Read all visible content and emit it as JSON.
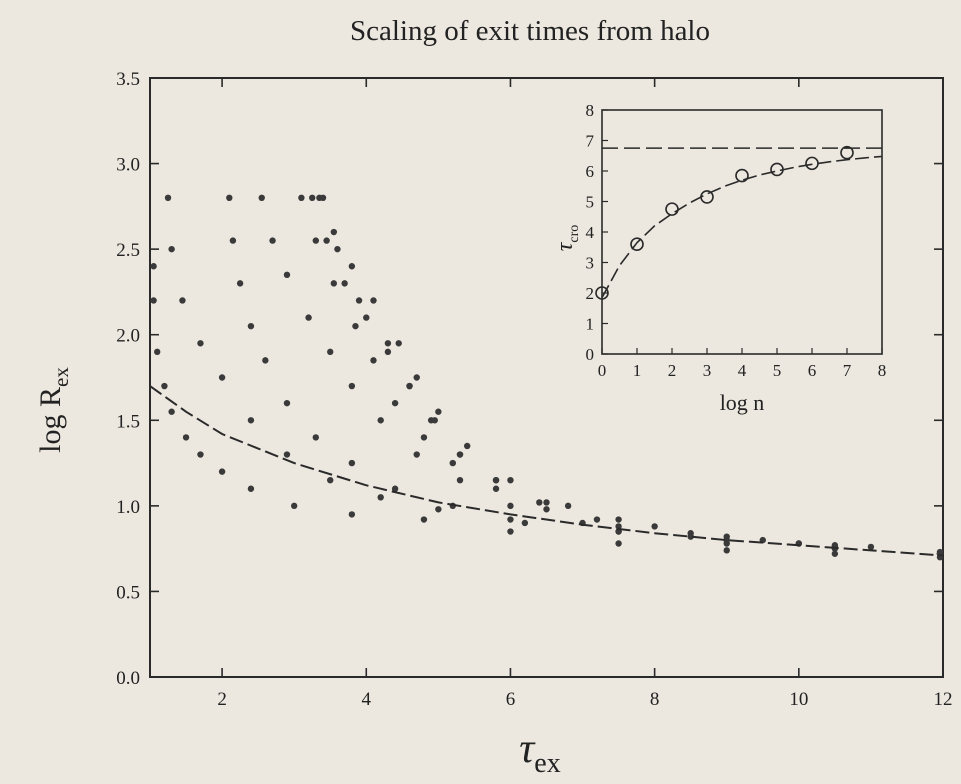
{
  "chart_data": [
    {
      "id": "main",
      "type": "scatter",
      "title": "Scaling of exit times from halo",
      "xlabel": "τ",
      "xlabel_sub": "ex",
      "ylabel": "log R",
      "ylabel_sub": "ex",
      "xlim": [
        1,
        12
      ],
      "ylim": [
        0.0,
        3.5
      ],
      "xticks": [
        2,
        4,
        6,
        8,
        10,
        12
      ],
      "yticks": [
        "0.0",
        "0.5",
        "1.0",
        "1.5",
        "2.0",
        "2.5",
        "3.0",
        "3.5"
      ],
      "grid": false,
      "series": [
        {
          "values": [
            [
              1.05,
              2.4
            ],
            [
              1.05,
              2.2
            ],
            [
              1.1,
              1.9
            ],
            [
              1.2,
              1.7
            ],
            [
              1.3,
              1.55
            ],
            [
              1.5,
              1.4
            ],
            [
              1.7,
              1.3
            ],
            [
              2.0,
              1.2
            ],
            [
              2.4,
              1.1
            ],
            [
              3.0,
              1.0
            ],
            [
              3.8,
              0.95
            ],
            [
              4.8,
              0.92
            ],
            [
              6.0,
              0.85
            ],
            [
              7.5,
              0.78
            ],
            [
              9.0,
              0.74
            ],
            [
              10.5,
              0.72
            ],
            [
              12.0,
              0.7
            ]
          ]
        },
        {
          "values": [
            [
              1.25,
              2.8
            ],
            [
              1.3,
              2.5
            ],
            [
              1.45,
              2.2
            ],
            [
              1.7,
              1.95
            ],
            [
              2.0,
              1.75
            ],
            [
              2.4,
              1.5
            ],
            [
              2.9,
              1.3
            ],
            [
              3.5,
              1.15
            ],
            [
              4.2,
              1.05
            ],
            [
              5.0,
              0.98
            ],
            [
              6.0,
              0.92
            ],
            [
              7.5,
              0.85
            ],
            [
              9.0,
              0.78
            ],
            [
              10.5,
              0.75
            ],
            [
              12.0,
              0.72
            ]
          ]
        },
        {
          "values": [
            [
              2.1,
              2.8
            ],
            [
              2.15,
              2.55
            ],
            [
              2.25,
              2.3
            ],
            [
              2.4,
              2.05
            ],
            [
              2.6,
              1.85
            ],
            [
              2.9,
              1.6
            ],
            [
              3.3,
              1.4
            ],
            [
              3.8,
              1.25
            ],
            [
              4.4,
              1.1
            ],
            [
              5.2,
              1.0
            ],
            [
              6.2,
              0.9
            ],
            [
              7.5,
              0.85
            ],
            [
              9.0,
              0.8
            ],
            [
              10.5,
              0.76
            ],
            [
              12.0,
              0.72
            ]
          ]
        },
        {
          "values": [
            [
              2.55,
              2.8
            ],
            [
              2.7,
              2.55
            ],
            [
              2.9,
              2.35
            ],
            [
              3.2,
              2.1
            ],
            [
              3.5,
              1.9
            ],
            [
              3.8,
              1.7
            ],
            [
              4.2,
              1.5
            ],
            [
              4.7,
              1.3
            ],
            [
              5.3,
              1.15
            ],
            [
              6.0,
              1.0
            ],
            [
              7.0,
              0.9
            ],
            [
              8.5,
              0.82
            ],
            [
              10.0,
              0.78
            ],
            [
              12.0,
              0.72
            ]
          ]
        },
        {
          "values": [
            [
              3.1,
              2.8
            ],
            [
              3.3,
              2.55
            ],
            [
              3.55,
              2.3
            ],
            [
              3.85,
              2.05
            ],
            [
              4.1,
              1.85
            ],
            [
              4.4,
              1.6
            ],
            [
              4.8,
              1.4
            ],
            [
              5.2,
              1.25
            ],
            [
              5.8,
              1.1
            ],
            [
              6.5,
              0.98
            ],
            [
              7.5,
              0.88
            ],
            [
              9.0,
              0.8
            ],
            [
              10.5,
              0.76
            ],
            [
              12.0,
              0.72
            ]
          ]
        },
        {
          "values": [
            [
              3.25,
              2.8
            ],
            [
              3.45,
              2.55
            ],
            [
              3.7,
              2.3
            ],
            [
              4.0,
              2.1
            ],
            [
              4.3,
              1.9
            ],
            [
              4.6,
              1.7
            ],
            [
              4.95,
              1.5
            ],
            [
              5.3,
              1.3
            ],
            [
              5.8,
              1.15
            ],
            [
              6.4,
              1.02
            ],
            [
              7.2,
              0.92
            ],
            [
              8.5,
              0.84
            ],
            [
              10.0,
              0.78
            ],
            [
              12.0,
              0.72
            ]
          ]
        },
        {
          "values": [
            [
              3.35,
              2.8
            ],
            [
              3.6,
              2.5
            ],
            [
              3.9,
              2.2
            ],
            [
              4.3,
              1.95
            ],
            [
              4.6,
              1.7
            ],
            [
              4.9,
              1.5
            ],
            [
              5.3,
              1.3
            ],
            [
              5.8,
              1.15
            ],
            [
              6.5,
              1.02
            ],
            [
              7.5,
              0.92
            ],
            [
              9.0,
              0.82
            ],
            [
              10.5,
              0.77
            ],
            [
              12.0,
              0.72
            ]
          ]
        },
        {
          "values": [
            [
              3.4,
              2.8
            ],
            [
              3.55,
              2.6
            ],
            [
              3.8,
              2.4
            ],
            [
              4.1,
              2.2
            ],
            [
              4.45,
              1.95
            ],
            [
              4.7,
              1.75
            ],
            [
              5.0,
              1.55
            ],
            [
              5.4,
              1.35
            ],
            [
              6.0,
              1.15
            ],
            [
              6.8,
              1.0
            ],
            [
              8.0,
              0.88
            ],
            [
              9.5,
              0.8
            ],
            [
              11.0,
              0.76
            ],
            [
              12.0,
              0.73
            ]
          ]
        }
      ],
      "fit_curve": [
        [
          1.0,
          1.7
        ],
        [
          1.5,
          1.55
        ],
        [
          2.0,
          1.42
        ],
        [
          3.0,
          1.25
        ],
        [
          4.0,
          1.12
        ],
        [
          5.0,
          1.02
        ],
        [
          6.0,
          0.95
        ],
        [
          7.0,
          0.89
        ],
        [
          8.0,
          0.84
        ],
        [
          9.0,
          0.8
        ],
        [
          10.0,
          0.77
        ],
        [
          11.0,
          0.74
        ],
        [
          12.0,
          0.71
        ]
      ]
    },
    {
      "id": "inset",
      "type": "scatter",
      "xlabel": "log n",
      "ylabel": "τ",
      "ylabel_sub": "cro",
      "xlim": [
        0,
        8
      ],
      "ylim": [
        0,
        8
      ],
      "xticks": [
        "0",
        "1",
        "2",
        "3",
        "4",
        "5",
        "6",
        "7",
        "8"
      ],
      "yticks": [
        "0",
        "1",
        "2",
        "3",
        "4",
        "5",
        "6",
        "7",
        "8"
      ],
      "points": [
        [
          0,
          2.0
        ],
        [
          1,
          3.6
        ],
        [
          2,
          4.75
        ],
        [
          3,
          5.15
        ],
        [
          4,
          5.85
        ],
        [
          5,
          6.05
        ],
        [
          6,
          6.25
        ],
        [
          7,
          6.6
        ]
      ],
      "asymptote": 6.75,
      "fit_curve": [
        [
          0,
          1.85
        ],
        [
          0.5,
          2.9
        ],
        [
          1,
          3.65
        ],
        [
          1.5,
          4.2
        ],
        [
          2,
          4.6
        ],
        [
          2.5,
          4.95
        ],
        [
          3,
          5.25
        ],
        [
          3.5,
          5.5
        ],
        [
          4,
          5.7
        ],
        [
          4.5,
          5.87
        ],
        [
          5,
          6.0
        ],
        [
          5.5,
          6.12
        ],
        [
          6,
          6.22
        ],
        [
          6.5,
          6.3
        ],
        [
          7,
          6.37
        ],
        [
          7.5,
          6.43
        ],
        [
          8,
          6.48
        ]
      ]
    }
  ],
  "colors": {
    "ink": "#2a2a2a",
    "paper": "#ece8df",
    "points": "#3a3a3a"
  }
}
